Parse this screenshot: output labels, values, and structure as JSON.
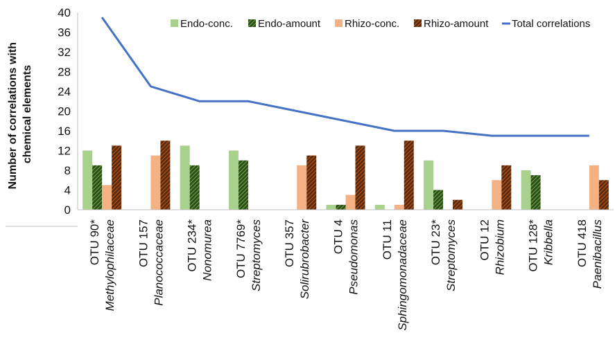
{
  "chart_data": {
    "type": "bar",
    "ylabel_lines": [
      "Number of correlations with",
      "chemical elements"
    ],
    "ylim": [
      0,
      40
    ],
    "yticks": [
      "0",
      "4",
      "8",
      "12",
      "16",
      "20",
      "24",
      "28",
      "32",
      "36",
      "40"
    ],
    "grid": false,
    "legend_position": "top",
    "categories": [
      {
        "otu": "OTU 90*",
        "taxon": "Methylophilaceae"
      },
      {
        "otu": "OTU 157",
        "taxon": "Planococcaceae"
      },
      {
        "otu": "OTU 234*",
        "taxon": "Nonomurea"
      },
      {
        "otu": "OTU 7769*",
        "taxon": "Streptomyces"
      },
      {
        "otu": "OTU 357",
        "taxon": "Solirubrobacter"
      },
      {
        "otu": "OTU 4",
        "taxon": "Pseudomonas"
      },
      {
        "otu": "OTU 11",
        "taxon": "Sphingomonadaceae"
      },
      {
        "otu": "OTU 23*",
        "taxon": "Streptomyces"
      },
      {
        "otu": "OTU 12",
        "taxon": "Rhizobium"
      },
      {
        "otu": "OTU 128*",
        "taxon": "Kribbella"
      },
      {
        "otu": "OTU 418",
        "taxon": "Paenibacillus"
      }
    ],
    "series": [
      {
        "name": "Endo-conc.",
        "kind": "bar",
        "color": "#a9d18e",
        "pattern": "solid",
        "values": [
          12,
          0,
          13,
          12,
          0,
          1,
          1,
          10,
          0,
          8,
          0
        ]
      },
      {
        "name": "Endo-amount",
        "kind": "bar",
        "color": "#548235",
        "pattern": "hatch",
        "values": [
          9,
          0,
          9,
          10,
          0,
          1,
          0,
          4,
          0,
          7,
          0
        ]
      },
      {
        "name": "Rhizo-conc.",
        "kind": "bar",
        "color": "#f4b183",
        "pattern": "solid",
        "values": [
          5,
          11,
          0,
          0,
          9,
          3,
          1,
          0,
          6,
          0,
          9
        ]
      },
      {
        "name": "Rhizo-amount",
        "kind": "bar",
        "color": "#843c0c",
        "pattern": "hatch",
        "values": [
          13,
          14,
          0,
          0,
          11,
          13,
          14,
          2,
          9,
          0,
          6
        ]
      },
      {
        "name": "Total correlations",
        "kind": "line",
        "color": "#4472c4",
        "values": [
          39,
          25,
          22,
          22,
          20,
          18,
          16,
          16,
          15,
          15,
          15
        ]
      }
    ]
  }
}
